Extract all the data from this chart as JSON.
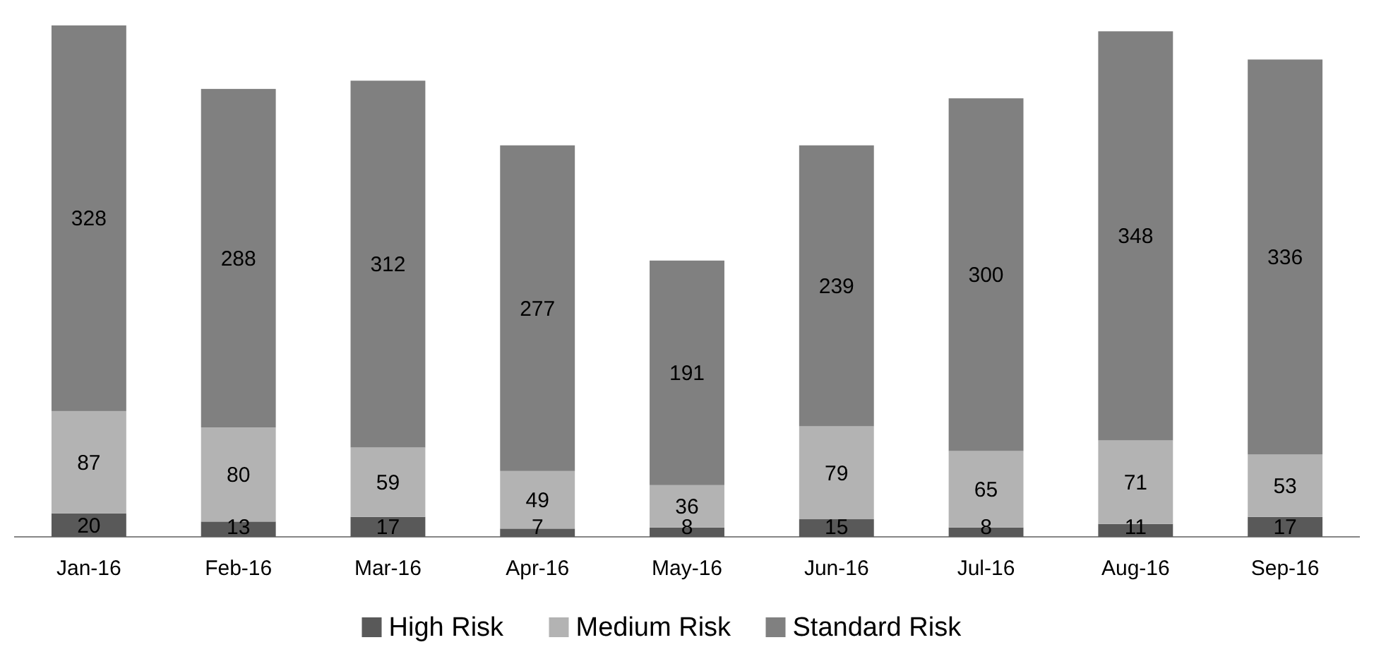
{
  "chart_data": {
    "type": "bar",
    "stacked": true,
    "categories": [
      "Jan-16",
      "Feb-16",
      "Mar-16",
      "Apr-16",
      "May-16",
      "Jun-16",
      "Jul-16",
      "Aug-16",
      "Sep-16"
    ],
    "series": [
      {
        "name": "High Risk",
        "color": "#595959",
        "values": [
          20,
          13,
          17,
          7,
          8,
          15,
          8,
          11,
          17
        ]
      },
      {
        "name": "Medium Risk",
        "color": "#b3b3b3",
        "values": [
          87,
          80,
          59,
          49,
          36,
          79,
          65,
          71,
          53
        ]
      },
      {
        "name": "Standard Risk",
        "color": "#808080",
        "values": [
          328,
          288,
          312,
          277,
          191,
          239,
          300,
          348,
          336
        ]
      }
    ],
    "data_labels": true,
    "legend": "bottom"
  }
}
